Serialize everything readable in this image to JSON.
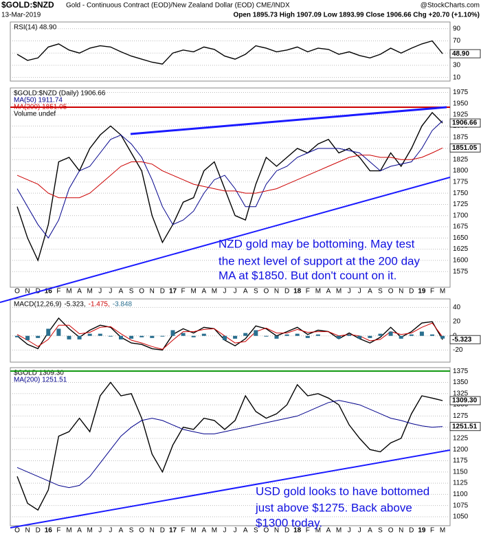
{
  "header": {
    "title": "$GOLD:$NZD",
    "subtitle": "Gold - Continuous Contract (EOD)/New Zealand Dollar (EOD) CME/INDX",
    "date": "13-Mar-2019",
    "quote": "Open 1895.73  High 1907.09  Low 1893.99  Close 1906.66  Chg +20.70 (+1.10%)",
    "source": "@StockCharts.com"
  },
  "chart_data": [
    {
      "type": "line",
      "grid": true,
      "ylim": [
        4,
        101
      ],
      "yticks": [
        90,
        70,
        50,
        30,
        10
      ],
      "series": [
        {
          "name": "RSI(14) 48.90",
          "color": "#000000",
          "values": [
            48,
            38,
            42,
            60,
            65,
            55,
            50,
            58,
            62,
            60,
            52,
            45,
            40,
            35,
            32,
            50,
            55,
            52,
            60,
            56,
            45,
            40,
            48,
            62,
            58,
            52,
            55,
            60,
            52,
            58,
            56,
            48,
            52,
            46,
            42,
            48,
            58,
            50,
            58,
            65,
            70,
            48.9
          ]
        }
      ],
      "last_labels": [
        {
          "value": 48.9,
          "label": "48.90"
        }
      ]
    },
    {
      "type": "line",
      "grid": true,
      "ylim": [
        1540,
        1985
      ],
      "yticks": [
        1975,
        1950,
        1925,
        1900,
        1875,
        1850,
        1825,
        1800,
        1775,
        1750,
        1725,
        1700,
        1675,
        1650,
        1625,
        1600,
        1575
      ],
      "categories": [
        "O",
        "N",
        "D",
        "16",
        "F",
        "M",
        "A",
        "M",
        "J",
        "J",
        "A",
        "S",
        "O",
        "N",
        "D",
        "17",
        "F",
        "M",
        "A",
        "M",
        "J",
        "J",
        "A",
        "S",
        "O",
        "N",
        "D",
        "18",
        "F",
        "M",
        "A",
        "M",
        "J",
        "J",
        "A",
        "S",
        "O",
        "N",
        "D",
        "19",
        "F",
        "M"
      ],
      "series": [
        {
          "name": "$GOLD:$NZD (Daily) 1906.66",
          "color": "#000000",
          "values": [
            1720,
            1650,
            1600,
            1680,
            1820,
            1830,
            1800,
            1850,
            1880,
            1900,
            1880,
            1840,
            1800,
            1700,
            1640,
            1680,
            1730,
            1740,
            1800,
            1820,
            1760,
            1700,
            1690,
            1770,
            1830,
            1810,
            1830,
            1850,
            1840,
            1860,
            1870,
            1840,
            1850,
            1830,
            1800,
            1800,
            1840,
            1810,
            1850,
            1900,
            1930,
            1906.66
          ]
        },
        {
          "name": "MA(50) 1911.74",
          "color": "#00008b",
          "values": [
            1760,
            1720,
            1680,
            1650,
            1690,
            1760,
            1800,
            1810,
            1840,
            1870,
            1880,
            1860,
            1830,
            1780,
            1720,
            1680,
            1690,
            1710,
            1750,
            1780,
            1790,
            1760,
            1720,
            1720,
            1770,
            1800,
            1810,
            1830,
            1840,
            1850,
            1850,
            1850,
            1845,
            1840,
            1820,
            1800,
            1810,
            1815,
            1820,
            1850,
            1890,
            1911.74
          ]
        },
        {
          "name": "MA(200) 1851.05",
          "color": "#cc0000",
          "values": [
            1790,
            1780,
            1770,
            1750,
            1740,
            1740,
            1740,
            1750,
            1770,
            1790,
            1810,
            1820,
            1820,
            1815,
            1800,
            1790,
            1780,
            1770,
            1765,
            1760,
            1755,
            1755,
            1750,
            1750,
            1755,
            1760,
            1770,
            1780,
            1790,
            1800,
            1810,
            1820,
            1830,
            1835,
            1835,
            1830,
            1830,
            1825,
            1825,
            1830,
            1840,
            1851.05
          ]
        }
      ],
      "note": "Volume undef",
      "last_labels": [
        {
          "value": 1906.66,
          "label": "1906.66"
        },
        {
          "value": 1851.05,
          "label": "1851.05"
        }
      ],
      "annotation": [
        "NZD gold may be bottoming. May test",
        "the next level of support at the 200 day",
        "MA at $1850. But don't count on it."
      ]
    },
    {
      "type": "line",
      "grid": true,
      "title": "MACD(12,26,9)",
      "ylim": [
        -37,
        52
      ],
      "yticks": [
        40,
        20,
        0,
        -20
      ],
      "series": [
        {
          "name": "-5.323,",
          "color": "#000000",
          "values": [
            0,
            -12,
            -18,
            5,
            25,
            10,
            -2,
            8,
            15,
            12,
            -2,
            -10,
            -12,
            -18,
            -20,
            2,
            10,
            4,
            12,
            10,
            -6,
            -14,
            -4,
            14,
            10,
            0,
            6,
            12,
            2,
            8,
            6,
            -4,
            4,
            -4,
            -10,
            -2,
            12,
            -2,
            6,
            18,
            20,
            -5.323
          ]
        },
        {
          "name": "-1.475,",
          "color": "#cc0000",
          "values": [
            2,
            -6,
            -15,
            -5,
            15,
            15,
            3,
            5,
            12,
            13,
            3,
            -6,
            -10,
            -15,
            -19,
            -6,
            6,
            6,
            9,
            10,
            0,
            -10,
            -8,
            6,
            11,
            4,
            4,
            9,
            5,
            6,
            6,
            0,
            2,
            0,
            -7,
            -5,
            6,
            2,
            4,
            12,
            18,
            -1.475
          ]
        },
        {
          "name": "-3.848",
          "color": "#2a6f8f",
          "kind": "bar",
          "values": [
            -2,
            -6,
            -3,
            10,
            10,
            -5,
            -5,
            3,
            3,
            -1,
            -5,
            -4,
            -2,
            -3,
            -1,
            8,
            4,
            -2,
            3,
            0,
            -6,
            -4,
            4,
            8,
            -1,
            -4,
            2,
            3,
            -3,
            2,
            0,
            -4,
            2,
            -4,
            -3,
            3,
            6,
            -4,
            2,
            6,
            2,
            -3.848
          ]
        }
      ],
      "last_labels": [
        {
          "value": -5.323,
          "label": "-5.323"
        }
      ]
    },
    {
      "type": "line",
      "grid": true,
      "ylim": [
        1030,
        1383
      ],
      "yticks": [
        1375,
        1350,
        1325,
        1300,
        1275,
        1250,
        1225,
        1200,
        1175,
        1150,
        1125,
        1100,
        1075,
        1050
      ],
      "categories": [
        "O",
        "N",
        "D",
        "16",
        "F",
        "M",
        "A",
        "M",
        "J",
        "J",
        "A",
        "S",
        "O",
        "N",
        "D",
        "17",
        "F",
        "M",
        "A",
        "M",
        "J",
        "J",
        "A",
        "S",
        "O",
        "N",
        "D",
        "18",
        "F",
        "M",
        "A",
        "M",
        "J",
        "J",
        "A",
        "S",
        "O",
        "N",
        "D",
        "19",
        "F",
        "M"
      ],
      "series": [
        {
          "name": "$GOLD 1309.30",
          "color": "#000000",
          "values": [
            1140,
            1080,
            1065,
            1110,
            1230,
            1240,
            1270,
            1240,
            1320,
            1350,
            1320,
            1325,
            1270,
            1190,
            1150,
            1210,
            1250,
            1245,
            1270,
            1265,
            1245,
            1265,
            1320,
            1285,
            1270,
            1280,
            1300,
            1345,
            1320,
            1325,
            1315,
            1300,
            1255,
            1225,
            1200,
            1195,
            1215,
            1225,
            1280,
            1320,
            1315,
            1309.3
          ]
        },
        {
          "name": "MA(200) 1251.51",
          "color": "#00008b",
          "values": [
            1160,
            1150,
            1140,
            1130,
            1120,
            1115,
            1120,
            1140,
            1170,
            1200,
            1230,
            1250,
            1265,
            1270,
            1265,
            1255,
            1245,
            1240,
            1235,
            1235,
            1240,
            1245,
            1250,
            1255,
            1260,
            1265,
            1270,
            1275,
            1285,
            1295,
            1305,
            1310,
            1305,
            1300,
            1290,
            1280,
            1270,
            1265,
            1258,
            1253,
            1250,
            1251.51
          ]
        }
      ],
      "last_labels": [
        {
          "value": 1309.3,
          "label": "1309.30"
        },
        {
          "value": 1251.51,
          "label": "1251.51"
        }
      ],
      "annotation": [
        "USD gold looks to have bottomed",
        "just above $1275. Back above",
        "$1300 today."
      ]
    }
  ]
}
